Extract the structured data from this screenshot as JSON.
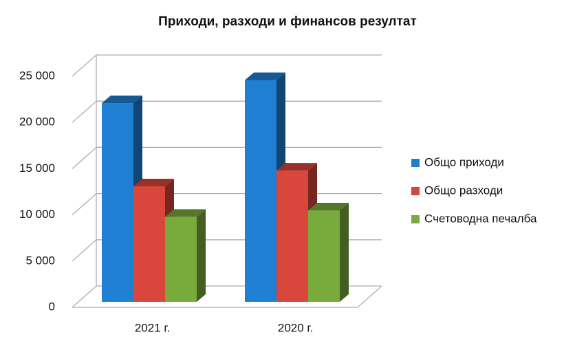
{
  "chart_data": {
    "type": "bar3d",
    "title": "Приходи, разходи и финансов резултат",
    "categories": [
      "2021 г.",
      "2020 г."
    ],
    "series": [
      {
        "name": "Общо приходи",
        "color": "#1f7fd3",
        "values": [
          21500,
          24000
        ]
      },
      {
        "name": "Общо разходи",
        "color": "#d9463b",
        "values": [
          12500,
          14200
        ]
      },
      {
        "name": "Счетоводна печалба",
        "color": "#79aa3c",
        "values": [
          9200,
          9900
        ]
      }
    ],
    "ylim": [
      0,
      25000
    ],
    "yticks": [
      {
        "value": 0,
        "label": "0"
      },
      {
        "value": 5000,
        "label": "5 000"
      },
      {
        "value": 10000,
        "label": "10 000"
      },
      {
        "value": 15000,
        "label": "15 000"
      },
      {
        "value": 20000,
        "label": "20 000"
      },
      {
        "value": 25000,
        "label": "25 000"
      }
    ],
    "grid": true,
    "legend": "right"
  }
}
